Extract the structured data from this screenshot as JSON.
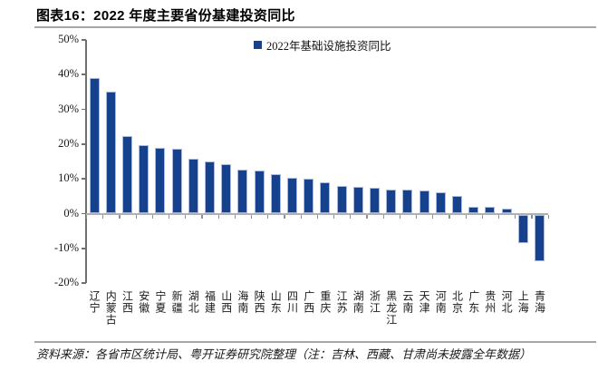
{
  "header": {
    "title": "图表16：2022 年度主要省份基建投资同比"
  },
  "chart_data": {
    "type": "bar",
    "title": "图表16：2022 年度主要省份基建投资同比",
    "legend": [
      "2022年基础设施投资同比"
    ],
    "legend_position": "top-center",
    "grid": false,
    "bar_color": "#16418C",
    "axis_color": "#808080",
    "ylim": [
      -20,
      50
    ],
    "yticks": [
      50,
      40,
      30,
      20,
      10,
      0,
      -10,
      -20
    ],
    "ytick_labels": [
      "50%",
      "40%",
      "30%",
      "20%",
      "10%",
      "0%",
      "-10%",
      "-20%"
    ],
    "xlabel": "",
    "ylabel": "",
    "categories": [
      "辽宁",
      "内蒙古",
      "江西",
      "安徽",
      "宁夏",
      "新疆",
      "湖北",
      "福建",
      "山西",
      "海南",
      "陕西",
      "山东",
      "四川",
      "广西",
      "重庆",
      "江苏",
      "湖南",
      "浙江",
      "黑龙江",
      "云南",
      "天津",
      "河南",
      "北京",
      "广东",
      "贵州",
      "河北",
      "上海",
      "青海"
    ],
    "values": [
      39.0,
      35.2,
      22.3,
      19.6,
      19.0,
      18.6,
      15.8,
      15.0,
      14.3,
      12.6,
      12.3,
      11.4,
      10.3,
      10.0,
      8.9,
      8.0,
      7.8,
      7.4,
      7.0,
      6.8,
      6.6,
      6.1,
      5.1,
      2.0,
      1.9,
      1.5,
      -8.2,
      -13.5
    ]
  },
  "footer": {
    "source_note": "资料来源：各省市区统计局、粤开证券研究院整理（注：吉林、西藏、甘肃尚未披露全年数据）"
  },
  "colors": {
    "bar": "#16418C",
    "bar_edge": "#aab8dd",
    "axis": "#808080",
    "zero_line": "#b0b0b0",
    "title": "#000000"
  }
}
